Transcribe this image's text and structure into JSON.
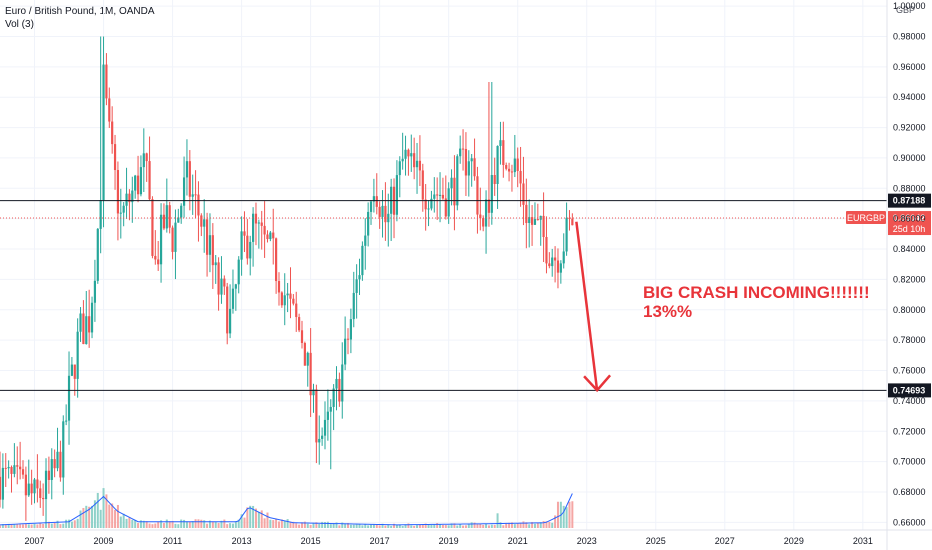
{
  "header": {
    "title": "Euro / British Pound, 1M, OANDA",
    "vol_label": "Vol (3)",
    "currency": "GBP"
  },
  "chart_data": {
    "type": "candlestick",
    "symbol": "EURGBP",
    "interval": "1M",
    "ylim": [
      0.655,
      1.004
    ],
    "xlim": [
      2006.0,
      2031.7
    ],
    "y_ticks": [
      0.66,
      0.68,
      0.7,
      0.72,
      0.74,
      0.76,
      0.78,
      0.8,
      0.82,
      0.84,
      0.86,
      0.88,
      0.9,
      0.92,
      0.94,
      0.96,
      0.98,
      1.0
    ],
    "x_ticks": [
      2007,
      2009,
      2011,
      2013,
      2015,
      2017,
      2019,
      2021,
      2023,
      2025,
      2027,
      2029,
      2031
    ],
    "price_path": [
      [
        2006.0,
        0.69
      ],
      [
        2006.5,
        0.684
      ],
      [
        2007.0,
        0.676
      ],
      [
        2007.4,
        0.683
      ],
      [
        2007.8,
        0.705
      ],
      [
        2008.0,
        0.745
      ],
      [
        2008.3,
        0.785
      ],
      [
        2008.6,
        0.795
      ],
      [
        2008.9,
        0.87
      ],
      [
        2009.0,
        0.95
      ],
      [
        2009.2,
        0.905
      ],
      [
        2009.5,
        0.86
      ],
      [
        2009.9,
        0.88
      ],
      [
        2010.2,
        0.895
      ],
      [
        2010.5,
        0.83
      ],
      [
        2010.8,
        0.862
      ],
      [
        2011.0,
        0.848
      ],
      [
        2011.4,
        0.885
      ],
      [
        2011.9,
        0.855
      ],
      [
        2012.3,
        0.815
      ],
      [
        2012.7,
        0.793
      ],
      [
        2013.0,
        0.838
      ],
      [
        2013.3,
        0.855
      ],
      [
        2013.9,
        0.835
      ],
      [
        2014.4,
        0.8
      ],
      [
        2014.8,
        0.78
      ],
      [
        2015.1,
        0.73
      ],
      [
        2015.4,
        0.715
      ],
      [
        2015.7,
        0.74
      ],
      [
        2016.0,
        0.77
      ],
      [
        2016.5,
        0.84
      ],
      [
        2016.8,
        0.89
      ],
      [
        2017.2,
        0.855
      ],
      [
        2017.7,
        0.9
      ],
      [
        2018.3,
        0.88
      ],
      [
        2019.0,
        0.875
      ],
      [
        2019.6,
        0.905
      ],
      [
        2020.0,
        0.85
      ],
      [
        2020.3,
        0.895
      ],
      [
        2020.7,
        0.905
      ],
      [
        2021.0,
        0.89
      ],
      [
        2021.3,
        0.86
      ],
      [
        2021.8,
        0.845
      ],
      [
        2022.1,
        0.835
      ],
      [
        2022.4,
        0.848
      ],
      [
        2022.6,
        0.86
      ]
    ],
    "peak_2008": 0.98,
    "low_2015": 0.695,
    "high_2020": 0.95,
    "volume_path": [
      [
        2006.0,
        0.03
      ],
      [
        2008.0,
        0.06
      ],
      [
        2008.6,
        0.18
      ],
      [
        2009.0,
        0.3
      ],
      [
        2009.4,
        0.16
      ],
      [
        2010.0,
        0.06
      ],
      [
        2012.9,
        0.06
      ],
      [
        2013.2,
        0.2
      ],
      [
        2013.8,
        0.1
      ],
      [
        2014.5,
        0.05
      ],
      [
        2017.5,
        0.03
      ],
      [
        2020.0,
        0.04
      ],
      [
        2021.8,
        0.05
      ],
      [
        2022.3,
        0.13
      ],
      [
        2022.6,
        0.34
      ]
    ],
    "volume_spikes": [
      {
        "x": 2009.0,
        "v": 0.38
      },
      {
        "x": 2013.3,
        "v": 0.21
      },
      {
        "x": 2020.4,
        "v": 0.14
      },
      {
        "x": 2022.2,
        "v": 0.25
      },
      {
        "x": 2022.5,
        "v": 0.25
      }
    ],
    "horizontal_levels": [
      {
        "value": 0.87188,
        "label": "0.87188"
      },
      {
        "value": 0.74693,
        "label": "0.74693"
      }
    ],
    "current_price": {
      "value": 0.86042,
      "label": "0.86042",
      "symbol": "EURGBP",
      "countdown": "25d 10h"
    },
    "arrow": {
      "from_x": 2022.7,
      "from_y": 0.858,
      "to_x": 2023.3,
      "to_y": 0.747
    },
    "annotation": {
      "line1": "BIG CRASH INCOMING!!!!!!!",
      "line2": "13%%"
    },
    "colors": {
      "up": "#26a69a",
      "down": "#ef5350",
      "volume_ma": "#2962ff",
      "annotation": "#e8343a"
    }
  }
}
